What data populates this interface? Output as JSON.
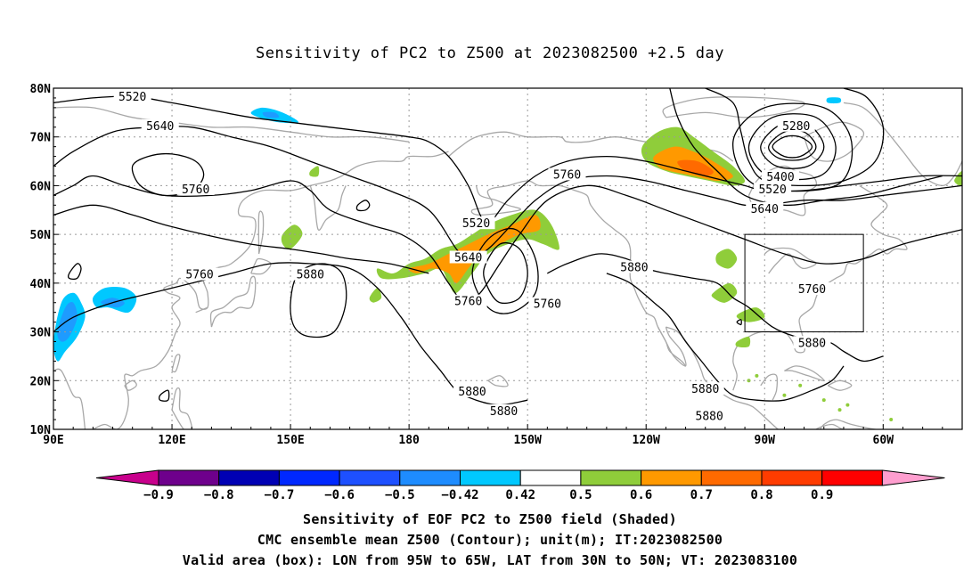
{
  "title": "Sensitivity of PC2 to Z500 at 2023082500 +2.5 day",
  "map": {
    "lat_labels": [
      "80N",
      "70N",
      "60N",
      "50N",
      "40N",
      "30N",
      "20N",
      "10N"
    ],
    "lon_labels": [
      "90E",
      "120E",
      "150E",
      "180",
      "150W",
      "120W",
      "90W",
      "60W"
    ],
    "lon_range": [
      90,
      320
    ],
    "lat_range": [
      10,
      80
    ],
    "grid": true,
    "valid_box": {
      "lon": [
        265,
        295
      ],
      "lat": [
        30,
        50
      ]
    },
    "contour_labels": [
      {
        "text": "5520",
        "lon": 110,
        "lat": 78
      },
      {
        "text": "5640",
        "lon": 117,
        "lat": 72
      },
      {
        "text": "5760",
        "lon": 126,
        "lat": 59
      },
      {
        "text": "5760",
        "lon": 127,
        "lat": 41.5
      },
      {
        "text": "5880",
        "lon": 155,
        "lat": 41.5
      },
      {
        "text": "5520",
        "lon": 197,
        "lat": 52
      },
      {
        "text": "5640",
        "lon": 195,
        "lat": 45
      },
      {
        "text": "5760",
        "lon": 195,
        "lat": 36
      },
      {
        "text": "5760",
        "lon": 220,
        "lat": 62
      },
      {
        "text": "5760",
        "lon": 215,
        "lat": 35.5
      },
      {
        "text": "5880",
        "lon": 237,
        "lat": 43
      },
      {
        "text": "5280",
        "lon": 278,
        "lat": 72
      },
      {
        "text": "5400",
        "lon": 274,
        "lat": 61.5
      },
      {
        "text": "5520",
        "lon": 272,
        "lat": 59
      },
      {
        "text": "5640",
        "lon": 270,
        "lat": 55
      },
      {
        "text": "5760",
        "lon": 282,
        "lat": 38.5
      },
      {
        "text": "5880",
        "lon": 282,
        "lat": 27.5
      },
      {
        "text": "5880",
        "lon": 196,
        "lat": 17.5
      },
      {
        "text": "5880",
        "lon": 204,
        "lat": 13.5
      },
      {
        "text": "5880",
        "lon": 255,
        "lat": 18
      },
      {
        "text": "5880",
        "lon": 256,
        "lat": 12.5
      }
    ],
    "colors": {
      "land": "#a8a8a8",
      "contour": "#000000",
      "pos_042": "#8fcd3a",
      "pos_050": "#ff9900",
      "pos_060": "#ff6a00",
      "neg_042": "#00c8ff",
      "neg_050": "#1e9bff",
      "neg_060": "#1e6bff"
    }
  },
  "colorbar": {
    "labels": [
      "-0.9",
      "-0.8",
      "-0.7",
      "-0.6",
      "-0.5",
      "-0.42",
      "0.42",
      "0.5",
      "0.6",
      "0.7",
      "0.8",
      "0.9"
    ],
    "colors": [
      "#6e008c",
      "#0000b4",
      "#0028ff",
      "#1e50ff",
      "#1e8cff",
      "#00c8ff",
      "#ffffff",
      "#8fcd3a",
      "#ff9900",
      "#ff6a00",
      "#ff3c00",
      "#ff0000"
    ],
    "under_color": "#c8008c",
    "over_color": "#ff9ecf"
  },
  "captions": [
    "Sensitivity of EOF PC2 to Z500 field (Shaded)",
    "CMC ensemble mean Z500 (Contour); unit(m); IT:2023082500",
    "Valid area (box): LON from 95W to 65W, LAT from 30N to 50N; VT: 2023083100"
  ]
}
